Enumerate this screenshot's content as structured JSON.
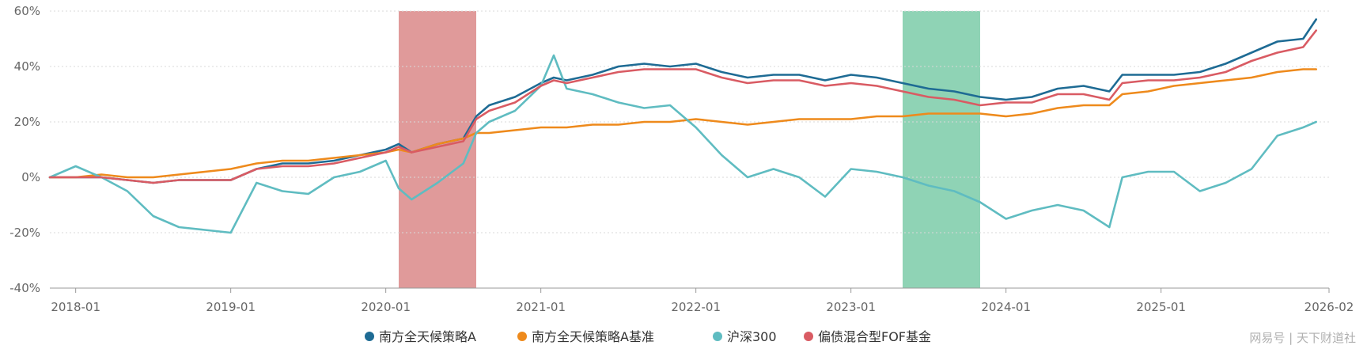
{
  "chart_data": {
    "type": "line",
    "title": "",
    "xlabel": "",
    "ylabel": "",
    "ylim": [
      -40,
      60
    ],
    "y_ticks": [
      "-40%",
      "-20%",
      "0%",
      "20%",
      "40%",
      "60%"
    ],
    "y_tick_values": [
      -40,
      -20,
      0,
      20,
      40,
      60
    ],
    "x_ticks": [
      "2018-01",
      "2019-01",
      "2020-01",
      "2021-01",
      "2022-01",
      "2023-01",
      "2024-01",
      "2025-01",
      "2026-02"
    ],
    "grid": "horizontal dashed",
    "legend_position": "bottom-center",
    "shaded_regions": [
      {
        "start": "2020-02",
        "end": "2020-08",
        "color": "#e09a9a"
      },
      {
        "start": "2023-05",
        "end": "2023-11",
        "color": "#8fd3b5"
      }
    ],
    "x": [
      "2017-11",
      "2018-01",
      "2018-03",
      "2018-05",
      "2018-07",
      "2018-09",
      "2018-11",
      "2019-01",
      "2019-03",
      "2019-05",
      "2019-07",
      "2019-09",
      "2019-11",
      "2020-01",
      "2020-02",
      "2020-03",
      "2020-05",
      "2020-07",
      "2020-08",
      "2020-09",
      "2020-11",
      "2021-01",
      "2021-02",
      "2021-03",
      "2021-05",
      "2021-07",
      "2021-09",
      "2021-11",
      "2022-01",
      "2022-03",
      "2022-05",
      "2022-07",
      "2022-09",
      "2022-11",
      "2023-01",
      "2023-03",
      "2023-05",
      "2023-07",
      "2023-09",
      "2023-11",
      "2024-01",
      "2024-03",
      "2024-05",
      "2024-07",
      "2024-09",
      "2024-10",
      "2024-12",
      "2025-02",
      "2025-04",
      "2025-06",
      "2025-08",
      "2025-10",
      "2025-12",
      "2026-01"
    ],
    "series": [
      {
        "name": "南方全天候策略A",
        "color": "#1e6b94",
        "values": [
          0,
          0,
          0,
          -1,
          -2,
          -1,
          -1,
          -1,
          3,
          5,
          5,
          6,
          8,
          10,
          12,
          9,
          12,
          14,
          22,
          26,
          29,
          34,
          36,
          35,
          37,
          40,
          41,
          40,
          41,
          38,
          36,
          37,
          37,
          35,
          37,
          36,
          34,
          32,
          31,
          29,
          28,
          29,
          32,
          33,
          31,
          37,
          37,
          37,
          38,
          41,
          45,
          49,
          50,
          57
        ]
      },
      {
        "name": "南方全天候策略A基准",
        "color": "#ee8a1c",
        "values": [
          0,
          0,
          1,
          0,
          0,
          1,
          2,
          3,
          5,
          6,
          6,
          7,
          8,
          9,
          10,
          9,
          12,
          14,
          16,
          16,
          17,
          18,
          18,
          18,
          19,
          19,
          20,
          20,
          21,
          20,
          19,
          20,
          21,
          21,
          21,
          22,
          22,
          23,
          23,
          23,
          22,
          23,
          25,
          26,
          26,
          30,
          31,
          33,
          34,
          35,
          36,
          38,
          39,
          39
        ]
      },
      {
        "name": "沪深300",
        "color": "#5fbcc1",
        "values": [
          0,
          4,
          0,
          -5,
          -14,
          -18,
          -19,
          -20,
          -2,
          -5,
          -6,
          0,
          2,
          6,
          -4,
          -8,
          -2,
          5,
          16,
          20,
          24,
          33,
          44,
          32,
          30,
          27,
          25,
          26,
          18,
          8,
          0,
          3,
          0,
          -7,
          3,
          2,
          0,
          -3,
          -5,
          -9,
          -15,
          -12,
          -10,
          -12,
          -18,
          0,
          2,
          2,
          -5,
          -2,
          3,
          15,
          18,
          20
        ]
      },
      {
        "name": "偏债混合型FOF基金",
        "color": "#d95b63",
        "values": [
          0,
          0,
          0,
          -1,
          -2,
          -1,
          -1,
          -1,
          3,
          4,
          4,
          5,
          7,
          9,
          11,
          9,
          11,
          13,
          21,
          24,
          27,
          33,
          35,
          34,
          36,
          38,
          39,
          39,
          39,
          36,
          34,
          35,
          35,
          33,
          34,
          33,
          31,
          29,
          28,
          26,
          27,
          27,
          30,
          30,
          28,
          34,
          35,
          35,
          36,
          38,
          42,
          45,
          47,
          53
        ]
      }
    ]
  },
  "watermark": "网易号 | 天下财道社"
}
